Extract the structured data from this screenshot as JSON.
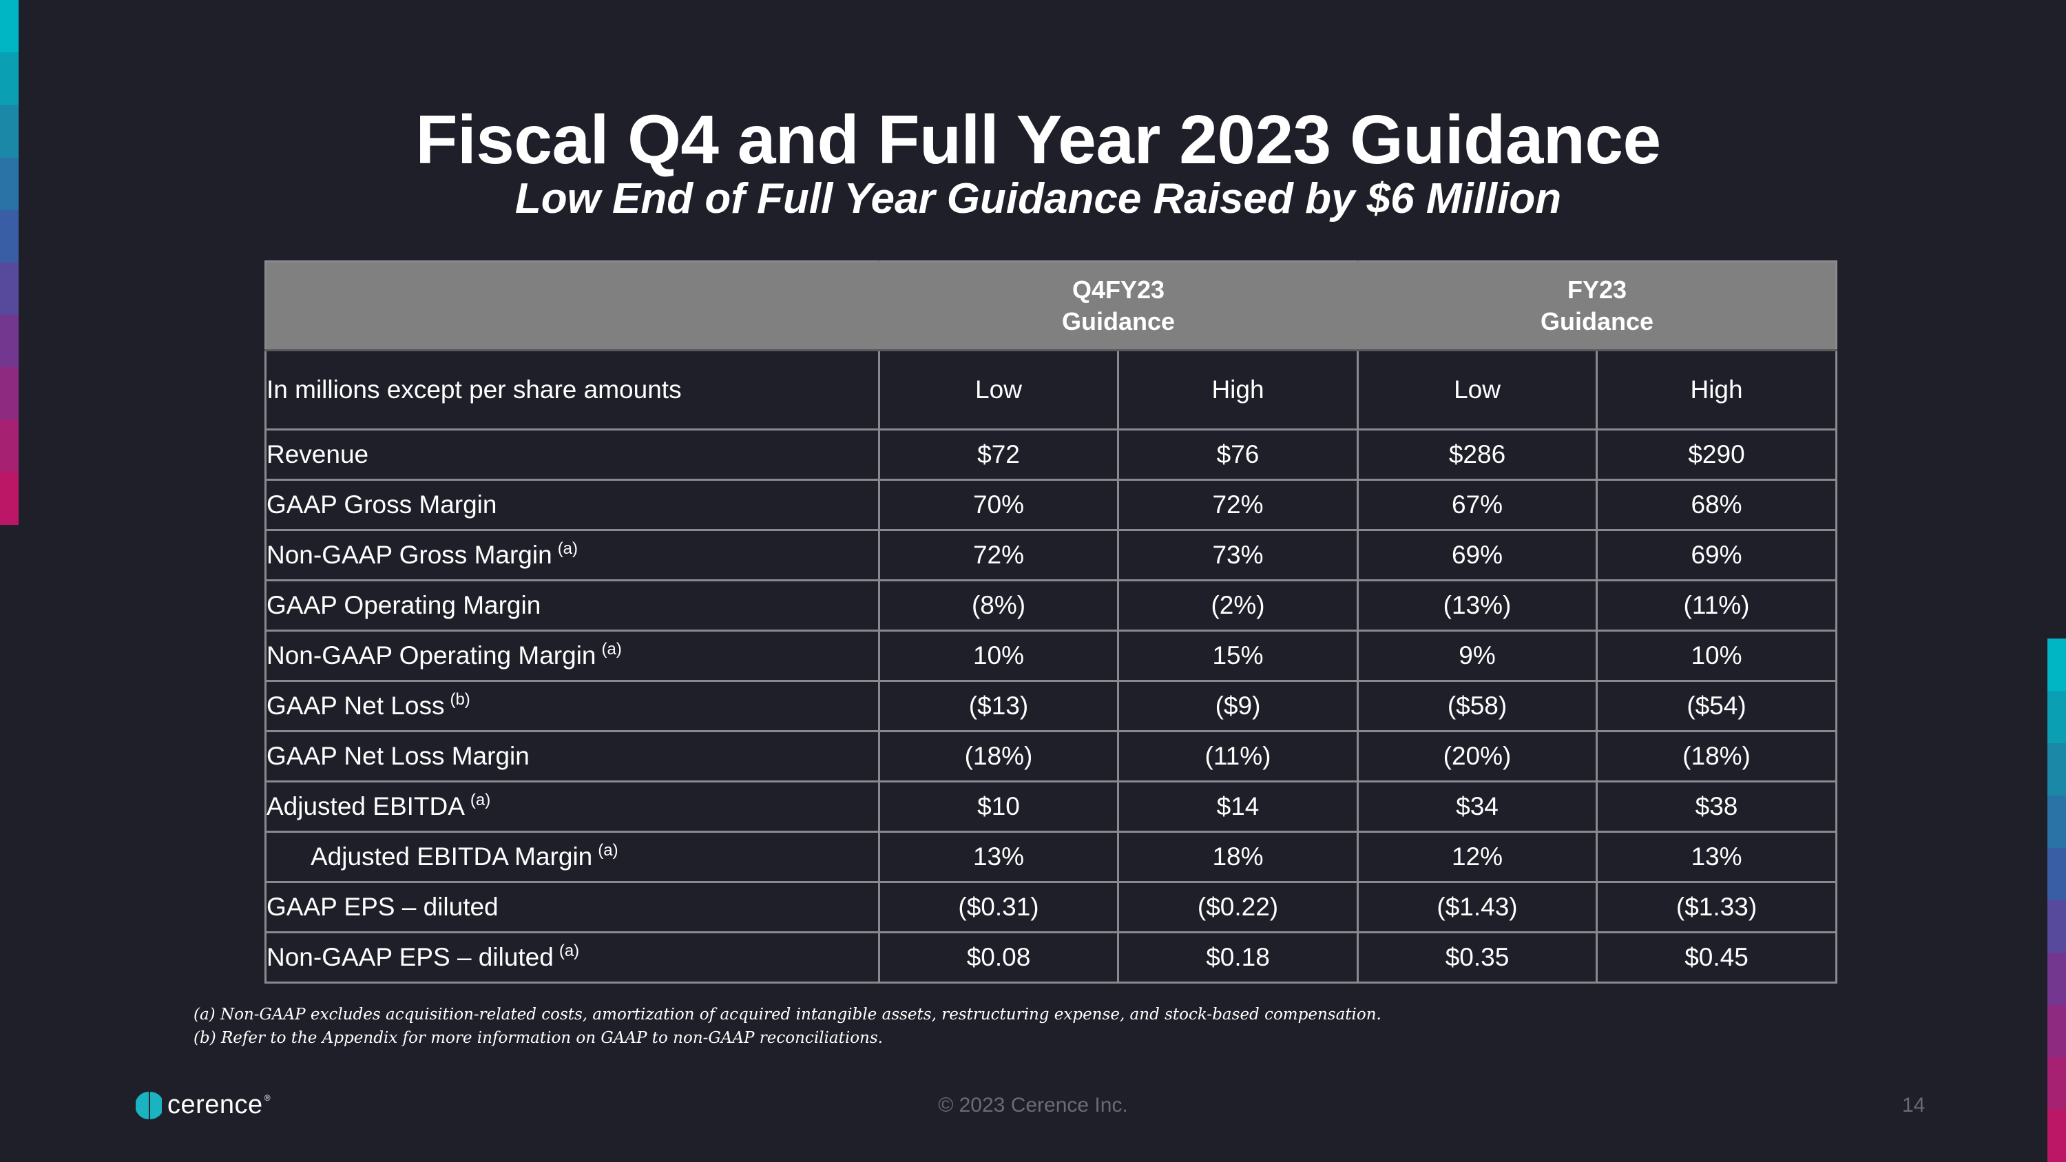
{
  "title": "Fiscal Q4 and Full Year 2023 Guidance",
  "subtitle": "Low End of Full Year Guidance Raised by $6 Million",
  "table": {
    "group_headers": [
      {
        "line1": "Q4FY23",
        "line2": "Guidance"
      },
      {
        "line1": "FY23",
        "line2": "Guidance"
      }
    ],
    "subheader": {
      "label": "In millions except per share amounts",
      "columns": [
        "Low",
        "High",
        "Low",
        "High"
      ]
    },
    "rows": [
      {
        "label": "Revenue",
        "note": "",
        "values": [
          "$72",
          "$76",
          "$286",
          "$290"
        ]
      },
      {
        "label": "GAAP Gross Margin",
        "note": "",
        "values": [
          "70%",
          "72%",
          "67%",
          "68%"
        ]
      },
      {
        "label": "Non-GAAP Gross Margin",
        "note": "(a)",
        "values": [
          "72%",
          "73%",
          "69%",
          "69%"
        ]
      },
      {
        "label": "GAAP Operating Margin",
        "note": "",
        "values": [
          "(8%)",
          "(2%)",
          "(13%)",
          "(11%)"
        ]
      },
      {
        "label": "Non-GAAP Operating Margin",
        "note": "(a)",
        "values": [
          "10%",
          "15%",
          "9%",
          "10%"
        ]
      },
      {
        "label": "GAAP Net Loss",
        "note": "(b)",
        "values": [
          "($13)",
          "($9)",
          "($58)",
          "($54)"
        ]
      },
      {
        "label": "GAAP Net Loss Margin",
        "note": "",
        "values": [
          "(18%)",
          "(11%)",
          "(20%)",
          "(18%)"
        ]
      },
      {
        "label": "Adjusted EBITDA",
        "note": "(a)",
        "values": [
          "$10",
          "$14",
          "$34",
          "$38"
        ]
      },
      {
        "label": "Adjusted EBITDA Margin",
        "note": "(a)",
        "values": [
          "13%",
          "18%",
          "12%",
          "13%"
        ]
      },
      {
        "label": "GAAP EPS – diluted",
        "note": "",
        "values": [
          "($0.31)",
          "($0.22)",
          "($1.43)",
          "($1.33)"
        ]
      },
      {
        "label": "Non-GAAP EPS – diluted",
        "note": "(a)",
        "values": [
          "$0.08",
          "$0.18",
          "$0.35",
          "$0.45"
        ]
      }
    ]
  },
  "footnotes": [
    "(a) Non-GAAP excludes acquisition-related costs, amortization of acquired intangible assets, restructuring expense, and stock-based compensation.",
    "(b) Refer to the Appendix for more information on GAAP to non-GAAP reconciliations."
  ],
  "footer": {
    "logo_text": "cerence",
    "copyright": "© 2023 Cerence Inc.",
    "page_number": "14"
  },
  "colors": {
    "background": "#1e1f29",
    "header_fill": "#808080",
    "grid": "#8a8a8e",
    "accent_stripes": [
      "#00b5c4",
      "#0a9fb3",
      "#1b88a8",
      "#2a73a6",
      "#3a5ea6",
      "#574a9c",
      "#73378f",
      "#8e2a80",
      "#a72173",
      "#bb1766",
      "#c9105c"
    ]
  }
}
